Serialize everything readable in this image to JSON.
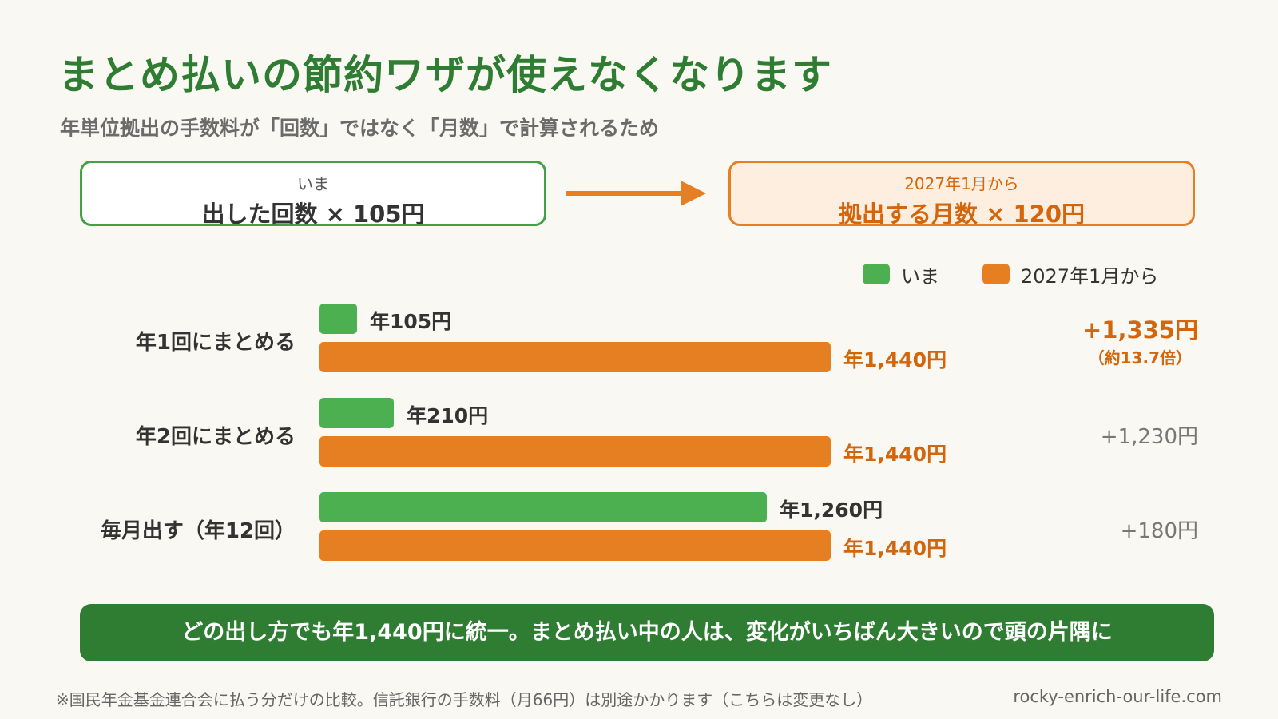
{
  "title": "まとめ払いの節約ワザが使えなくなります",
  "subtitle": "年単位拠出の手数料が「回数」ではなく「月数」で計算されるため",
  "formula_now": {
    "label": "いま",
    "formula": "出した回数 × 105円"
  },
  "formula_future": {
    "label": "2027年1月から",
    "formula": "拠出する月数 × 120円"
  },
  "colors": {
    "now": "#4caf50",
    "future": "#e67e22",
    "title_green": "#2e7d32",
    "accent_orange": "#d3660c"
  },
  "chart_data": {
    "type": "bar",
    "orientation": "horizontal",
    "categories": [
      "年1回にまとめる",
      "年2回にまとめる",
      "毎月出す（年12回）"
    ],
    "unit": "円",
    "series": [
      {
        "name": "いま",
        "values": [
          105,
          210,
          1260
        ],
        "labels": [
          "年105円",
          "年210円",
          "年1,260円"
        ]
      },
      {
        "name": "2027年1月から",
        "values": [
          1440,
          1440,
          1440
        ],
        "labels": [
          "年1,440円",
          "年1,440円",
          "年1,440円"
        ]
      }
    ],
    "differences": [
      {
        "value": "+1,335円",
        "note": "（約13.7倍）"
      },
      {
        "value": "+1,230円",
        "note": ""
      },
      {
        "value": "+180円",
        "note": ""
      }
    ],
    "xlim": [
      0,
      1440
    ],
    "legend": "top-right",
    "grid": false
  },
  "banner": "どの出し方でも年1,440円に統一。まとめ払い中の人は、変化がいちばん大きいので頭の片隅に",
  "footnote": "※国民年金基金連合会に払う分だけの比較。信託銀行の手数料（月66円）は別途かかります（こちらは変更なし）",
  "site": "rocky-enrich-our-life.com"
}
